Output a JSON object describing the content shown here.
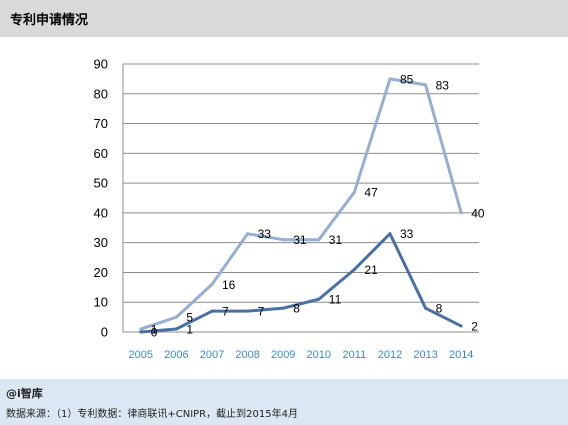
{
  "header": {
    "title": "专利申请情况"
  },
  "footer": {
    "brand": "@i智库",
    "source": "数据来源：（1）专利数据：律商联讯+CNIPR，截止到2015年4月"
  },
  "chart_data": {
    "type": "line",
    "title": "",
    "xlabel": "",
    "ylabel": "",
    "x": [
      "2005",
      "2006",
      "2007",
      "2008",
      "2009",
      "2010",
      "2011",
      "2012",
      "2013",
      "2014"
    ],
    "ylim": [
      0,
      90
    ],
    "yticks": [
      0,
      10,
      20,
      30,
      40,
      50,
      60,
      70,
      80,
      90
    ],
    "grid": true,
    "legend": "none",
    "series": [
      {
        "color": "#95aed3",
        "values": [
          1,
          5,
          16,
          33,
          31,
          31,
          47,
          85,
          83,
          40
        ]
      },
      {
        "color": "#4a6fa5",
        "values": [
          0,
          1,
          7,
          7,
          8,
          11,
          21,
          33,
          8,
          2
        ]
      }
    ]
  }
}
